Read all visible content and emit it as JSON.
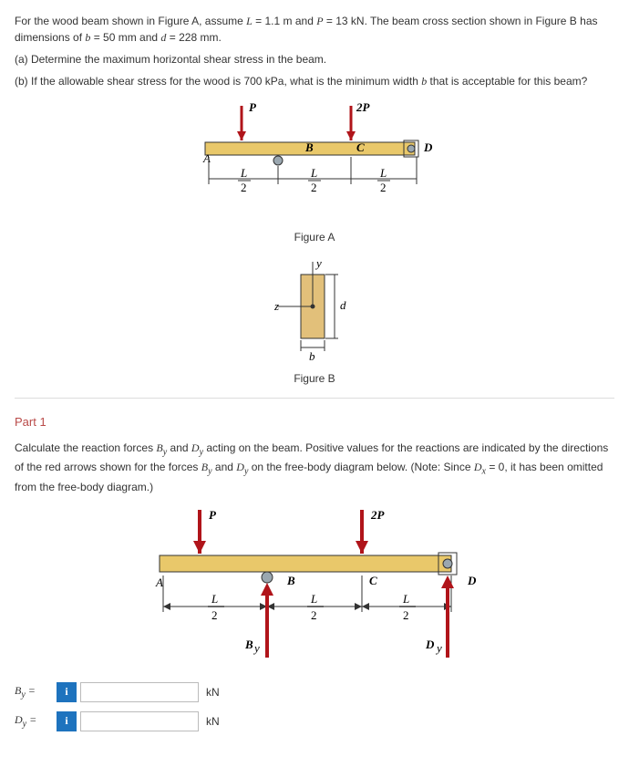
{
  "problem": {
    "intro_html": "For the wood beam shown in Figure A, assume <i>L</i> = 1.1 m and <i>P</i> = 13 kN. The beam cross section shown in Figure B has dimensions of <i>b</i> = 50 mm and <i>d</i> = 228 mm.",
    "qa": "(a)  Determine the maximum horizontal shear stress in the beam.",
    "qb": "(b)  If the allowable shear stress for the wood is 700 kPa, what is the minimum width <i>b</i> that is acceptable for this beam?"
  },
  "figA": {
    "caption": "Figure A",
    "P": "P",
    "twoP": "2P",
    "A": "A",
    "B": "B",
    "C": "C",
    "D": "D",
    "Lnum": "L",
    "L2": "2",
    "beam_color": "#e9c86a",
    "arrow_color": "#b0141a",
    "line_color": "#333333",
    "pin_color": "#9aa7b0"
  },
  "figB": {
    "caption": "Figure B",
    "y": "y",
    "z": "z",
    "b": "b",
    "d": "d",
    "face_color": "#e2c07a",
    "line_color": "#333333"
  },
  "part1": {
    "label": "Part 1",
    "text_html": "Calculate the reaction forces <i>B<sub>y</sub></i> and <i>D<sub>y</sub></i> acting on the beam. Positive values for the reactions are indicated by the directions of the red arrows shown for the forces <i>B<sub>y</sub></i> and <i>D<sub>y</sub></i> on the free-body diagram below. (Note: Since <i>D<sub>x</sub></i> = 0, it has been omitted from the free-body diagram.)",
    "By_reaction": "B",
    "Dy_reaction": "D",
    "sub_y": "y"
  },
  "answers": {
    "By_label_html": "<i>B<sub>y</sub></i> =",
    "Dy_label_html": "<i>D<sub>y</sub></i> =",
    "info_glyph": "i",
    "unit": "kN",
    "By_value": "",
    "Dy_value": ""
  },
  "style": {
    "svg_small_w": 300,
    "svg_small_h": 150,
    "svg_sect_w": 120,
    "svg_sect_h": 140,
    "svg_big_w": 420,
    "svg_big_h": 190
  }
}
